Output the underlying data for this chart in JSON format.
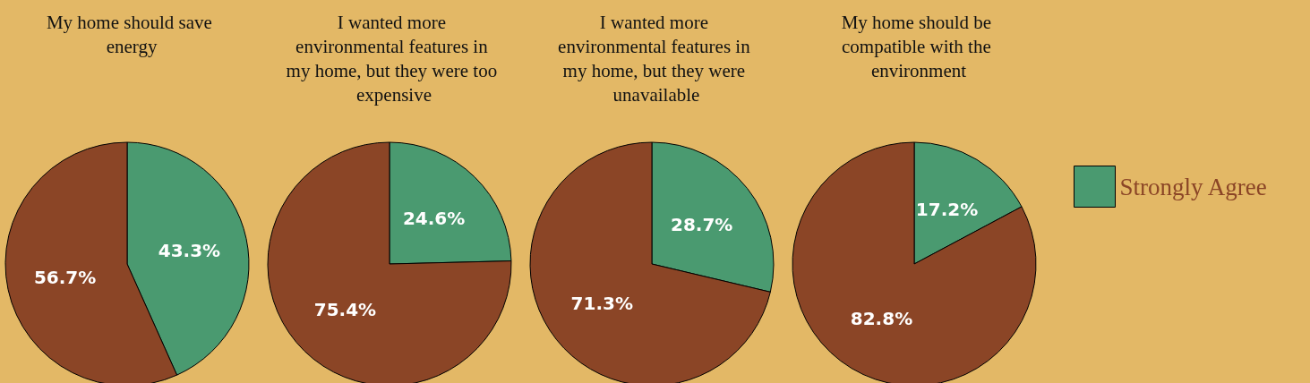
{
  "chart_data": [
    {
      "type": "pie",
      "title": "My home should save energy",
      "categories": [
        null,
        null
      ],
      "values": [
        43.3,
        56.7
      ],
      "value_labels": [
        "43.3%",
        "56.7%"
      ],
      "colors": [
        "#4a9a70",
        "#8b4526"
      ]
    },
    {
      "type": "pie",
      "title": "I wanted more environmental features in my home, but they were too expensive",
      "categories": [
        null,
        null
      ],
      "values": [
        24.6,
        75.4
      ],
      "value_labels": [
        "24.6%",
        "75.4%"
      ],
      "colors": [
        "#4a9a70",
        "#8b4526"
      ]
    },
    {
      "type": "pie",
      "title": "I wanted more environmental features in my home, but they were unavailable",
      "categories": [
        null,
        null
      ],
      "values": [
        28.7,
        71.3
      ],
      "value_labels": [
        "28.7%",
        "71.3%"
      ],
      "colors": [
        "#4a9a70",
        "#8b4526"
      ]
    },
    {
      "type": "pie",
      "title": "My home should be compatible with the environment",
      "categories": [
        "Strongly Agree",
        null
      ],
      "values": [
        17.2,
        82.8
      ],
      "value_labels": [
        "17.2%",
        "82.8%"
      ],
      "colors": [
        "#4a9a70",
        "#8b4526"
      ],
      "legend": "right"
    }
  ]
}
